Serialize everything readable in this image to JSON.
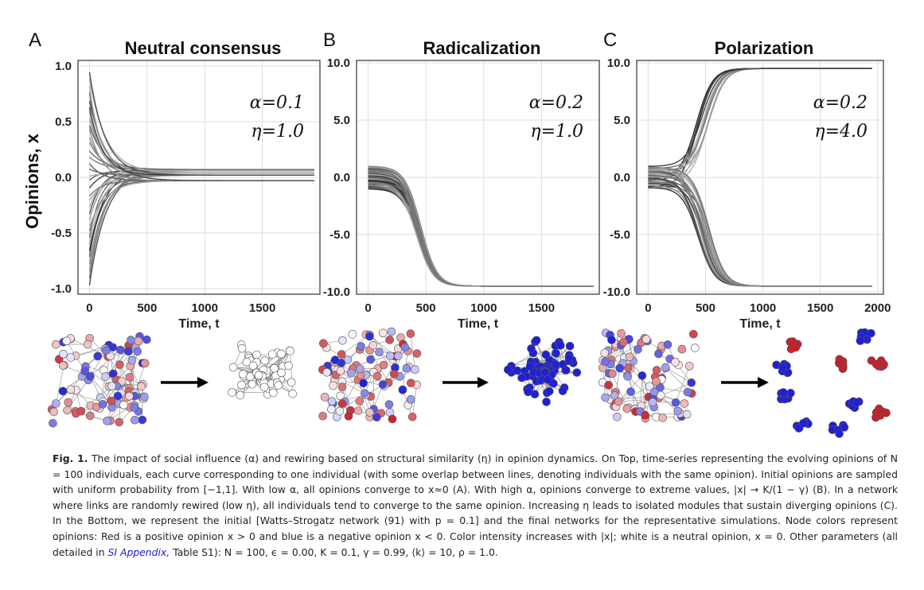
{
  "figure": {
    "y_axis_label": "Opinions, x",
    "panels": [
      {
        "letter": "A",
        "title": "Neutral consensus",
        "alpha_text": "α=0.1",
        "eta_text": "η=1.0",
        "xlabel": "Time, t"
      },
      {
        "letter": "B",
        "title": "Radicalization",
        "alpha_text": "α=0.2",
        "eta_text": "η=1.0",
        "xlabel": "Time, t"
      },
      {
        "letter": "C",
        "title": "Polarization",
        "alpha_text": "α=0.2",
        "eta_text": "η=4.0",
        "xlabel": "Time, t"
      }
    ]
  },
  "chart_data": [
    {
      "type": "line",
      "title": "Neutral consensus",
      "xlabel": "Time, t",
      "ylabel": "Opinions, x",
      "xlim": [
        -100,
        2000
      ],
      "ylim": [
        -1.05,
        1.05
      ],
      "xticks": [
        "0",
        "500",
        "1000",
        "1500"
      ],
      "yticks": [
        "1.0",
        "0.5",
        "0.0",
        "-0.5",
        "-1.0"
      ],
      "grid": true,
      "annotations": [
        "α=0.1",
        "η=1.0"
      ],
      "series_summary": {
        "count": 100,
        "initial_range": [
          -0.97,
          0.97
        ],
        "final_values": [
          0.07,
          0.06,
          0.04,
          0.02,
          -0.03
        ]
      }
    },
    {
      "type": "line",
      "title": "Radicalization",
      "xlabel": "Time, t",
      "ylabel": "Opinions, x",
      "xlim": [
        -100,
        2000
      ],
      "ylim": [
        -10.0,
        10.0
      ],
      "xticks": [
        "0",
        "500",
        "1000",
        "1500"
      ],
      "yticks": [
        "10.0",
        "5.0",
        "0.0",
        "-5.0",
        "-10.0"
      ],
      "grid": true,
      "annotations": [
        "α=0.2",
        "η=1.0"
      ],
      "series_summary": {
        "count": 100,
        "initial_range": [
          -1.0,
          1.0
        ],
        "final_value": -9.5
      }
    },
    {
      "type": "line",
      "title": "Polarization",
      "xlabel": "Time, t",
      "ylabel": "Opinions, x",
      "xlim": [
        -100,
        2050
      ],
      "ylim": [
        -10.0,
        10.0
      ],
      "xticks": [
        "0",
        "500",
        "1000",
        "1500",
        "2000"
      ],
      "yticks": [
        "10.0",
        "5.0",
        "0.0",
        "-5.0",
        "-10.0"
      ],
      "grid": true,
      "annotations": [
        "α=0.2",
        "η=4.0"
      ],
      "series_summary": {
        "count": 100,
        "initial_range": [
          -1.0,
          1.0
        ],
        "final_values": [
          9.5,
          -9.5
        ]
      }
    }
  ],
  "caption": {
    "label": "Fig. 1.",
    "text_before_link": "The impact of social influence (α) and rewiring based on structural similarity (η) in opinion dynamics. On Top, time-series representing the evolving opinions of N = 100 individuals, each curve corresponding to one individual (with some overlap between lines, denoting individuals with the same opinion). Initial opinions are sampled with uniform probability from [−1,1]. With low α, all opinions converge to x≈0 (A). With high α, opinions converge to extreme values, |x| → K/(1 − γ) (B). In a network where links are randomly rewired (low η), all individuals tend to converge to the same opinion. Increasing η leads to isolated modules that sustain diverging opinions (C). In the Bottom, we represent the initial [Watts–Strogatz network (91) with p = 0.1] and the final networks for the representative simulations. Node colors represent opinions: Red is a positive opinion x > 0 and blue is a negative opinion x < 0. Color intensity increases with |x|; white is a neutral opinion, x = 0. Other parameters (all detailed in",
    "link_text": "SI Appendix,",
    "text_after_link": "Table S1): N = 100, ϵ = 0.00, K = 0.1, γ = 0.99, ⟨k⟩ = 10, ρ = 1.0."
  },
  "colors": {
    "red": "#c8202a",
    "blue": "#1f1fd8",
    "edge": "#9a9a9a",
    "grid": "#dddddd",
    "link": "#1a1ad6"
  }
}
